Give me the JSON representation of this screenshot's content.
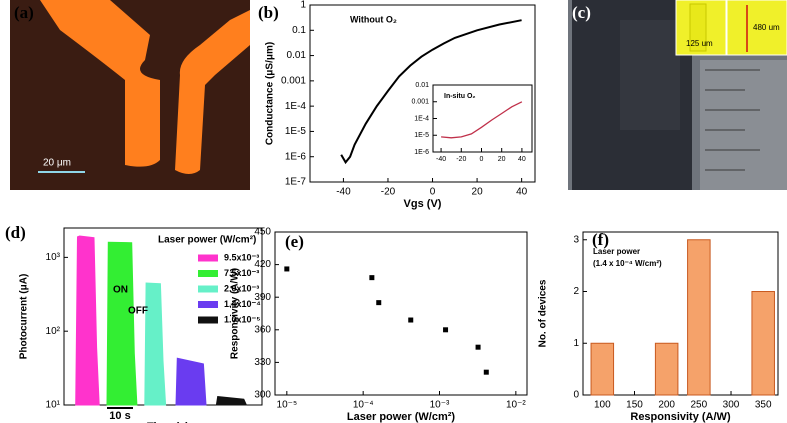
{
  "figure_panels": [
    {
      "label": "(a)",
      "scale_bar": "20 μm"
    },
    {
      "label": "(c)",
      "insets": [
        "125 um",
        "480 um"
      ]
    }
  ],
  "chart_data": [
    {
      "type": "line",
      "label": "(b)",
      "annotation": "Without O₂",
      "xlabel": "Vgs (V)",
      "ylabel": "Conductance (μS/μm)",
      "ylog": true,
      "xlim": [
        -55,
        46
      ],
      "xticks": [
        -40,
        -20,
        0,
        20,
        40
      ],
      "ylim": [
        1e-07,
        1
      ],
      "yticks": [
        {
          "value": 1e-07,
          "label": "1E-7"
        },
        {
          "value": 1e-06,
          "label": "1E-6"
        },
        {
          "value": 1e-05,
          "label": "1E-5"
        },
        {
          "value": 0.0001,
          "label": "1E-4"
        },
        0.001,
        0.01,
        0.1,
        1
      ],
      "color": "#000000",
      "x": [
        -41,
        -39,
        -37,
        -35,
        -30,
        -25,
        -20,
        -15,
        -10,
        -5,
        0,
        5,
        10,
        20,
        30,
        40
      ],
      "values": [
        1.2e-06,
        6e-07,
        1e-06,
        3e-06,
        2e-05,
        0.0001,
        0.0004,
        0.0015,
        0.004,
        0.009,
        0.017,
        0.03,
        0.05,
        0.1,
        0.17,
        0.25
      ]
    },
    {
      "type": "line",
      "annotation": "In-situ O₂",
      "ylog": true,
      "xlim": [
        -48,
        50
      ],
      "xticks": [
        -40,
        -20,
        0,
        20,
        40
      ],
      "ylim": [
        1e-06,
        0.01
      ],
      "yticks": [
        {
          "value": 1e-06,
          "label": "1E-6"
        },
        {
          "value": 1e-05,
          "label": "1E-5"
        },
        {
          "value": 0.0001,
          "label": "1E-4"
        },
        0.001,
        0.01
      ],
      "color": "#c0304a",
      "x": [
        -40,
        -30,
        -20,
        -10,
        0,
        10,
        20,
        30,
        40
      ],
      "values": [
        8e-06,
        7e-06,
        8e-06,
        1.2e-05,
        3e-05,
        8e-05,
        0.0002,
        0.0005,
        0.001
      ]
    },
    {
      "type": "area",
      "label": "(d)",
      "xlabel": "Time (s)",
      "ylabel": "Photocurrent (μA)",
      "ylog": true,
      "scale_bar": "10 s",
      "annotations": [
        "ON",
        "OFF"
      ],
      "legend_title": "Laser power (W/cm²)",
      "xlim": [
        0,
        76
      ],
      "ylim": [
        10,
        2500
      ],
      "yticks": [
        {
          "value": 10,
          "label": "10¹"
        },
        {
          "value": 100,
          "label": "10²"
        },
        {
          "value": 1000,
          "label": "10³"
        }
      ],
      "series": [
        {
          "name": "9.5x10⁻³",
          "color": "#ff33cc",
          "x": [
            4.5,
            5.2,
            6,
            11.5,
            12.5,
            13.5
          ],
          "values": [
            10,
            1900,
            1950,
            1850,
            60,
            10
          ]
        },
        {
          "name": "7.5x10⁻³",
          "color": "#33ee33",
          "x": [
            16.5,
            17,
            26,
            27,
            28
          ],
          "values": [
            10,
            1600,
            1580,
            50,
            10
          ]
        },
        {
          "name": "2.0x10⁻³",
          "color": "#66f0c8",
          "x": [
            31,
            31.5,
            37,
            38,
            39
          ],
          "values": [
            10,
            450,
            440,
            40,
            10
          ]
        },
        {
          "name": "1.4x10⁻⁴",
          "color": "#6a3cf0",
          "x": [
            43,
            43.5,
            53.5,
            54.5
          ],
          "values": [
            10,
            43,
            36,
            10
          ]
        },
        {
          "name": "1.0x10⁻⁵",
          "color": "#111111",
          "x": [
            58.5,
            59,
            69,
            70
          ],
          "values": [
            10,
            13,
            12,
            10
          ]
        }
      ]
    },
    {
      "type": "scatter",
      "label": "(e)",
      "xlabel": "Laser power (W/cm²)",
      "ylabel": "Responsivity (A/W)",
      "xlog": true,
      "xlim": [
        7e-06,
        0.014
      ],
      "xticks": [
        {
          "value": 1e-05,
          "label": "10⁻⁵"
        },
        {
          "value": 0.0001,
          "label": "10⁻⁴"
        },
        {
          "value": 0.001,
          "label": "10⁻³"
        },
        {
          "value": 0.01,
          "label": "10⁻²"
        }
      ],
      "ylim": [
        300,
        450
      ],
      "yticks": [
        300,
        330,
        360,
        390,
        420,
        450
      ],
      "color": "#000000",
      "x": [
        1e-05,
        0.00013,
        0.00016,
        0.00042,
        0.0012,
        0.0032,
        0.0041
      ],
      "values": [
        416,
        408,
        385,
        369,
        360,
        344,
        321
      ]
    },
    {
      "type": "bar",
      "label": "(f)",
      "xlabel": "Responsivity (A/W)",
      "ylabel": "No. of devices",
      "annotation": [
        "Laser power",
        "(1.4 x 10⁻⁴ W/cm²)"
      ],
      "xlim": [
        70,
        373
      ],
      "xticks": [
        100,
        150,
        200,
        250,
        300,
        350
      ],
      "ylim": [
        0,
        3.15
      ],
      "yticks": [
        0,
        1,
        2,
        3
      ],
      "color": "#f5a26a",
      "x": [
        100,
        200,
        250,
        350
      ],
      "values": [
        1,
        1,
        3,
        2
      ]
    }
  ]
}
